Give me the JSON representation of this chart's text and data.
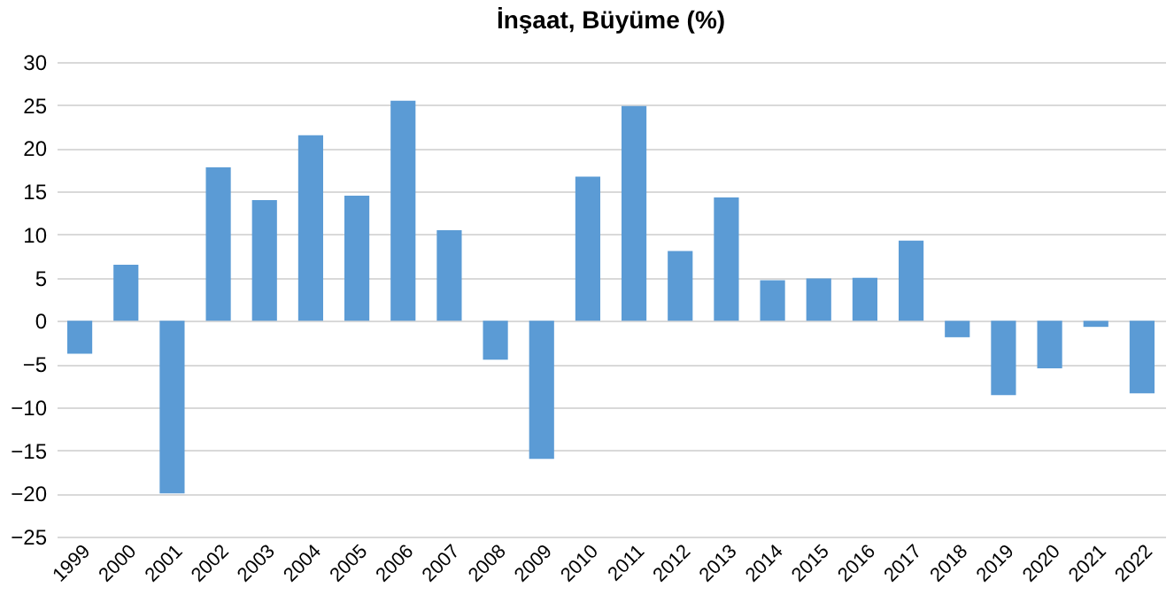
{
  "chart_data": {
    "type": "bar",
    "title": "İnşaat, Büyüme (%)",
    "categories": [
      "1999",
      "2000",
      "2001",
      "2002",
      "2003",
      "2004",
      "2005",
      "2006",
      "2007",
      "2008",
      "2009",
      "2010",
      "2011",
      "2012",
      "2013",
      "2014",
      "2015",
      "2016",
      "2017",
      "2018",
      "2019",
      "2020",
      "2021",
      "2022"
    ],
    "values": [
      -3.8,
      6.5,
      -20,
      17.8,
      14,
      21.5,
      14.5,
      25.5,
      10.5,
      -4.5,
      -16,
      16.7,
      24.9,
      8.1,
      14.3,
      4.7,
      4.9,
      5,
      9.3,
      -1.9,
      -8.6,
      -5.5,
      -0.7,
      -8.4
    ],
    "color": "#5b9bd5",
    "ylim": [
      -25,
      30
    ],
    "yticks": [
      -25,
      -20,
      -15,
      -10,
      -5,
      0,
      5,
      10,
      15,
      20,
      25,
      30
    ],
    "grid": "y"
  }
}
